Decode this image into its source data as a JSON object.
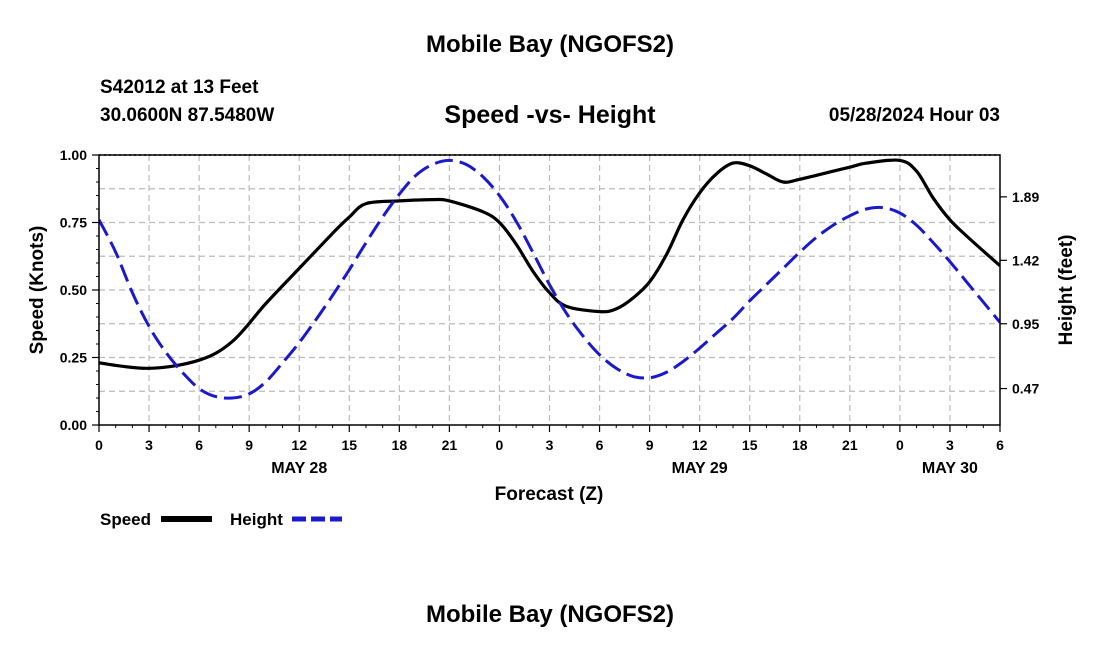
{
  "header": {
    "title": "Mobile Bay (NGOFS2)",
    "station_line1": "S42012 at 13 Feet",
    "station_line2": "30.0600N  87.5480W",
    "subtitle": "Speed -vs- Height",
    "datetime": "05/28/2024 Hour 03"
  },
  "footer": {
    "title": "Mobile Bay (NGOFS2)"
  },
  "colors": {
    "speed": "#000000",
    "height": "#1a1acc",
    "grid": "#bbbbbb"
  },
  "chart_data": {
    "type": "line",
    "title": "Speed -vs- Height",
    "xlabel": "Forecast (Z)",
    "ylabel": "Speed (Knots)",
    "y2label": "Height (feet)",
    "x_unit": "forecast hour",
    "xlim": [
      0,
      54
    ],
    "ylim": [
      0,
      1.0
    ],
    "y2lim": [
      0.2,
      2.2
    ],
    "x_ticks": [
      0,
      3,
      6,
      9,
      12,
      15,
      18,
      21,
      24,
      27,
      30,
      33,
      36,
      39,
      42,
      45,
      48,
      51,
      54
    ],
    "x_tick_labels": [
      "0",
      "3",
      "6",
      "9",
      "12",
      "15",
      "18",
      "21",
      "0",
      "3",
      "6",
      "9",
      "12",
      "15",
      "18",
      "21",
      "0",
      "3",
      "6"
    ],
    "date_labels": [
      {
        "x": 12,
        "label": "MAY 28"
      },
      {
        "x": 36,
        "label": "MAY 29"
      },
      {
        "x": 51,
        "label": "MAY 30"
      }
    ],
    "y_ticks": [
      0.0,
      0.25,
      0.5,
      0.75,
      1.0
    ],
    "y_tick_labels": [
      "0.00",
      "0.25",
      "0.50",
      "0.75",
      "1.00"
    ],
    "y2_ticks": [
      0.47,
      0.95,
      1.42,
      1.89
    ],
    "y2_tick_labels": [
      "0.47",
      "0.95",
      "1.42",
      "1.89"
    ],
    "grid": true,
    "legend_position": "bottom-left",
    "series": [
      {
        "name": "Speed",
        "axis": "left",
        "style": "solid",
        "x": [
          0,
          3,
          6,
          8,
          10,
          12,
          14,
          15,
          16,
          18,
          20,
          21,
          23,
          24,
          25,
          26,
          27,
          28,
          30,
          31,
          32,
          33,
          34,
          35,
          36,
          37,
          38,
          39,
          40,
          41,
          42,
          44,
          45,
          46,
          48,
          49,
          50,
          51,
          52,
          54
        ],
        "values": [
          0.23,
          0.21,
          0.24,
          0.31,
          0.45,
          0.58,
          0.71,
          0.77,
          0.82,
          0.83,
          0.835,
          0.83,
          0.79,
          0.75,
          0.67,
          0.57,
          0.49,
          0.44,
          0.42,
          0.43,
          0.47,
          0.53,
          0.63,
          0.76,
          0.86,
          0.93,
          0.97,
          0.96,
          0.93,
          0.9,
          0.91,
          0.94,
          0.955,
          0.97,
          0.98,
          0.94,
          0.84,
          0.76,
          0.7,
          0.59
        ]
      },
      {
        "name": "Height",
        "axis": "right",
        "style": "dashed",
        "x": [
          0,
          1,
          2,
          3,
          4,
          5,
          6,
          7,
          8,
          9,
          10,
          11,
          12,
          13,
          14,
          15,
          16,
          17,
          18,
          19,
          20,
          21,
          22,
          23,
          24,
          25,
          26,
          27,
          28,
          29,
          30,
          31,
          32,
          33,
          34,
          35,
          36,
          37,
          38,
          39,
          40,
          41,
          42,
          43,
          44,
          45,
          46,
          47,
          48,
          49,
          50,
          51,
          52,
          53,
          54
        ],
        "values": [
          1.72,
          1.48,
          1.18,
          0.93,
          0.74,
          0.59,
          0.47,
          0.41,
          0.4,
          0.43,
          0.52,
          0.66,
          0.81,
          0.98,
          1.16,
          1.35,
          1.55,
          1.74,
          1.91,
          2.05,
          2.13,
          2.16,
          2.13,
          2.04,
          1.9,
          1.71,
          1.48,
          1.24,
          1.03,
          0.86,
          0.72,
          0.62,
          0.56,
          0.55,
          0.59,
          0.67,
          0.77,
          0.88,
          0.99,
          1.12,
          1.24,
          1.36,
          1.48,
          1.59,
          1.68,
          1.75,
          1.8,
          1.81,
          1.77,
          1.68,
          1.55,
          1.41,
          1.26,
          1.11,
          0.96
        ]
      }
    ]
  }
}
